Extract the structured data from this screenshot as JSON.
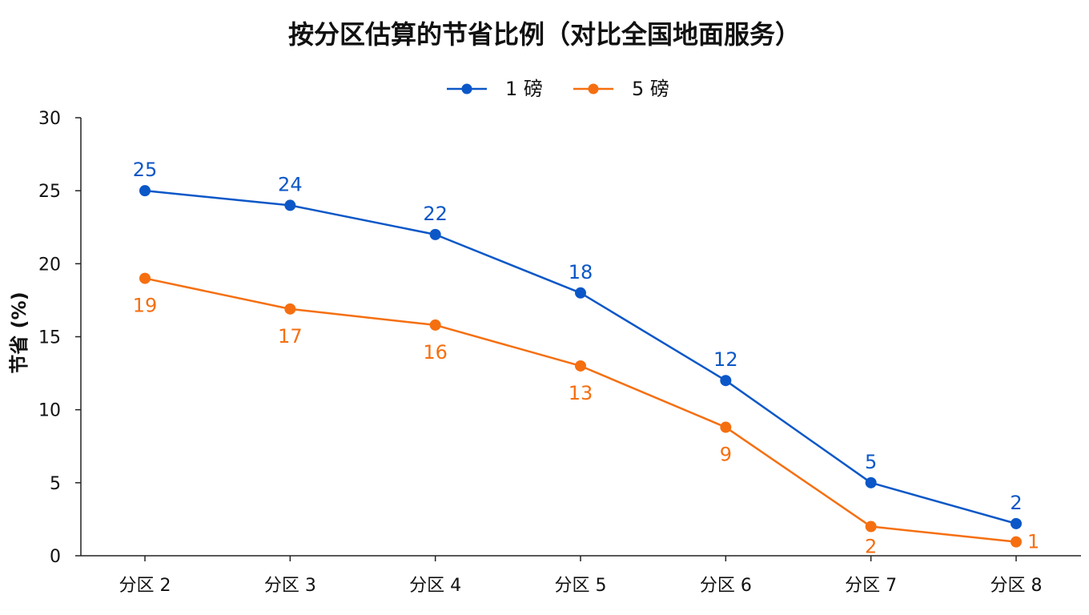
{
  "chart_data": {
    "type": "line",
    "title": "按分区估算的节省比例（对比全国地面服务）",
    "xlabel": "",
    "ylabel": "节省 (%)",
    "categories": [
      "分区 2",
      "分区 3",
      "分区 4",
      "分区 5",
      "分区 6",
      "分区 7",
      "分区 8"
    ],
    "ylim": [
      0,
      30
    ],
    "yticks": [
      "0",
      "5",
      "10",
      "15",
      "20",
      "25",
      "30"
    ],
    "grid": false,
    "legend_position": "top-center",
    "series": [
      {
        "name": "1 磅",
        "color": "#0b57c7",
        "values": [
          25,
          24,
          22,
          18,
          12,
          5,
          2.2
        ],
        "labels": [
          "25",
          "24",
          "22",
          "18",
          "12",
          "5",
          "2"
        ],
        "label_position": "above"
      },
      {
        "name": "5 磅",
        "color": "#f56f10",
        "values": [
          19,
          16.9,
          15.8,
          13,
          8.8,
          2,
          0.95
        ],
        "labels": [
          "19",
          "17",
          "16",
          "13",
          "9",
          "2",
          "1"
        ],
        "label_position": "below"
      }
    ]
  }
}
